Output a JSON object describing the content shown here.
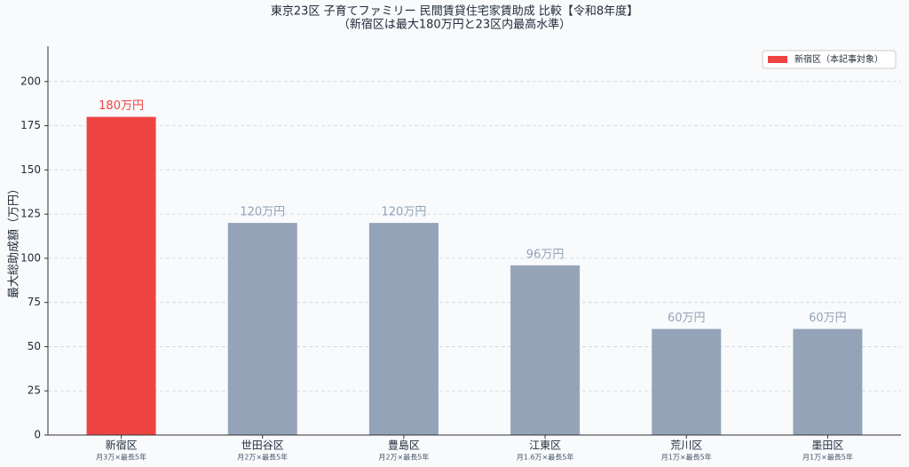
{
  "chart_data": {
    "type": "bar",
    "title": "東京23区 子育てファミリー 民間賃貸住宅家賃助成 比較【令和8年度】",
    "subtitle": "（新宿区は最大180万円と23区内最高水準）",
    "y_label": "最大総助成額（万円）",
    "categories": [
      "新宿区",
      "世田谷区",
      "豊島区",
      "江東区",
      "荒川区",
      "墨田区"
    ],
    "category_notes": [
      "月3万×最長5年",
      "月2万×最長5年",
      "月2万×最長5年",
      "月1.6万×最長5年",
      "月1万×最長5年",
      "月1万×最長5年"
    ],
    "values": [
      180,
      120,
      120,
      96,
      60,
      60
    ],
    "value_labels": [
      "180万円",
      "120万円",
      "120万円",
      "96万円",
      "60万円",
      "60万円"
    ],
    "colors": [
      "#ef4444",
      "#94a3b8",
      "#94a3b8",
      "#94a3b8",
      "#94a3b8",
      "#94a3b8"
    ],
    "legend": {
      "label": "新宿区（本記事対象）",
      "color": "#ef4444",
      "position": "upper right"
    },
    "ylim": [
      0,
      220
    ],
    "yticks": [
      0,
      25,
      50,
      75,
      100,
      125,
      150,
      175,
      200
    ],
    "grid": true
  }
}
